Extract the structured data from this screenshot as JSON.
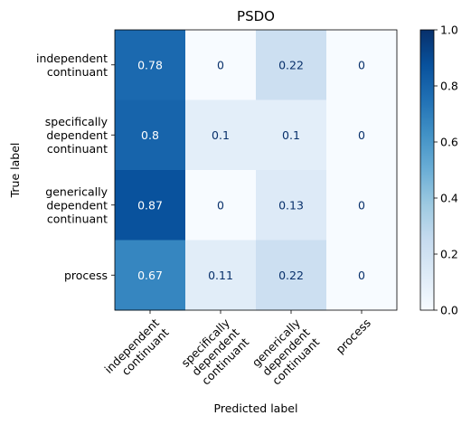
{
  "chart_data": {
    "type": "heatmap",
    "title": "PSDO",
    "xlabel": "Predicted label",
    "ylabel": "True label",
    "x_categories": [
      [
        "independent",
        "continuant"
      ],
      [
        "specifically",
        "dependent",
        "continuant"
      ],
      [
        "generically",
        "dependent",
        "continuant"
      ],
      [
        "process"
      ]
    ],
    "y_categories": [
      [
        "independent",
        "continuant"
      ],
      [
        "specifically",
        "dependent",
        "continuant"
      ],
      [
        "generically",
        "dependent",
        "continuant"
      ],
      [
        "process"
      ]
    ],
    "values": [
      [
        0.78,
        0,
        0.22,
        0
      ],
      [
        0.8,
        0.1,
        0.1,
        0
      ],
      [
        0.87,
        0,
        0.13,
        0
      ],
      [
        0.67,
        0.11,
        0.22,
        0
      ]
    ],
    "value_labels": [
      [
        "0.78",
        "0",
        "0.22",
        "0"
      ],
      [
        "0.8",
        "0.1",
        "0.1",
        "0"
      ],
      [
        "0.87",
        "0",
        "0.13",
        "0"
      ],
      [
        "0.67",
        "0.11",
        "0.22",
        "0"
      ]
    ],
    "colormap": "Blues",
    "vmin": 0,
    "vmax": 1,
    "colorbar_ticks": [
      0.0,
      0.2,
      0.4,
      0.6,
      0.8,
      1.0
    ],
    "colorbar_tick_labels": [
      "0.0",
      "0.2",
      "0.4",
      "0.6",
      "0.8",
      "1.0"
    ],
    "text_color_dark": "#08306b",
    "text_color_light": "#ffffff"
  }
}
